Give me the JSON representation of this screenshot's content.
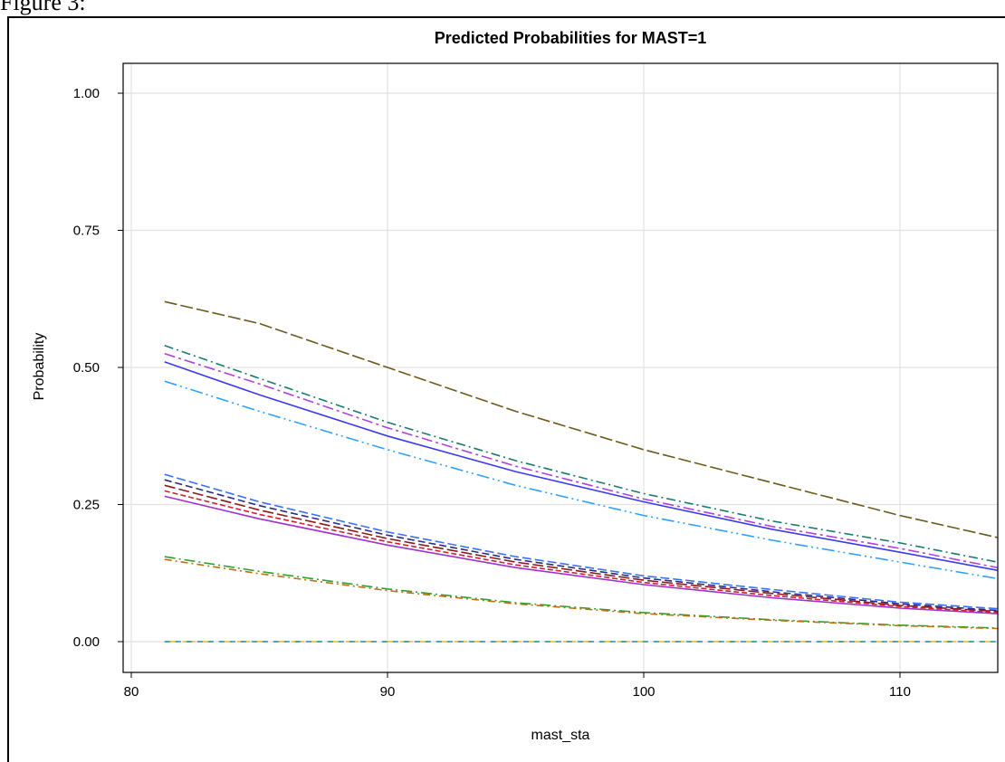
{
  "caption": "Figure 3:",
  "chart_data": {
    "type": "line",
    "title": "Predicted Probabilities for MAST=1",
    "xlabel": "mast_sta",
    "ylabel": "Probability",
    "xlim": [
      80,
      114
    ],
    "ylim": [
      0,
      1.0
    ],
    "x_ticks": [
      80,
      90,
      100,
      110
    ],
    "y_ticks": [
      0.0,
      0.25,
      0.5,
      0.75,
      1.0
    ],
    "grid": true,
    "x": [
      81.3,
      85,
      90,
      95,
      100,
      105,
      110,
      113.8
    ],
    "series": [
      {
        "color": "#6b5a1a",
        "dash": "14 4",
        "values": [
          0.62,
          0.58,
          0.5,
          0.42,
          0.35,
          0.29,
          0.23,
          0.19
        ]
      },
      {
        "color": "#1a7a70",
        "dash": "10 4 2 4",
        "values": [
          0.54,
          0.48,
          0.4,
          0.33,
          0.27,
          0.22,
          0.18,
          0.145
        ]
      },
      {
        "color": "#b040e0",
        "dash": "12 4 3 4",
        "values": [
          0.525,
          0.47,
          0.39,
          0.32,
          0.26,
          0.21,
          0.17,
          0.135
        ]
      },
      {
        "color": "#3a3af0",
        "dash": "",
        "values": [
          0.51,
          0.45,
          0.375,
          0.31,
          0.255,
          0.205,
          0.163,
          0.13
        ]
      },
      {
        "color": "#30a0ff",
        "dash": "14 4 2 4 2 4",
        "values": [
          0.475,
          0.42,
          0.35,
          0.285,
          0.23,
          0.185,
          0.145,
          0.115
        ]
      },
      {
        "color": "#3a70ff",
        "dash": "10 4",
        "values": [
          0.305,
          0.255,
          0.2,
          0.155,
          0.12,
          0.095,
          0.072,
          0.06
        ]
      },
      {
        "color": "#2a2a8a",
        "dash": "8 4",
        "values": [
          0.295,
          0.248,
          0.194,
          0.15,
          0.116,
          0.091,
          0.069,
          0.057
        ]
      },
      {
        "color": "#8a1a1a",
        "dash": "12 4",
        "values": [
          0.285,
          0.24,
          0.188,
          0.145,
          0.112,
          0.088,
          0.066,
          0.055
        ]
      },
      {
        "color": "#d02030",
        "dash": "6 3",
        "values": [
          0.275,
          0.232,
          0.182,
          0.14,
          0.108,
          0.084,
          0.064,
          0.053
        ]
      },
      {
        "color": "#a030d0",
        "dash": "",
        "values": [
          0.265,
          0.224,
          0.176,
          0.135,
          0.104,
          0.08,
          0.061,
          0.051
        ]
      },
      {
        "color": "#30a030",
        "dash": "12 4 2 4",
        "values": [
          0.155,
          0.128,
          0.096,
          0.071,
          0.053,
          0.04,
          0.03,
          0.025
        ]
      },
      {
        "color": "#c07010",
        "dash": "8 4 2 4",
        "values": [
          0.15,
          0.124,
          0.093,
          0.069,
          0.051,
          0.039,
          0.029,
          0.024
        ]
      },
      {
        "color": "#e0c020",
        "dash": "14 6",
        "values": [
          0.0,
          0.0,
          0.0,
          0.0,
          0.0,
          0.0,
          0.0,
          0.0
        ]
      },
      {
        "color": "#2090b0",
        "dash": "6 6",
        "values": [
          0.0,
          0.0,
          0.0,
          0.0,
          0.0,
          0.0,
          0.0,
          0.0
        ]
      }
    ]
  }
}
